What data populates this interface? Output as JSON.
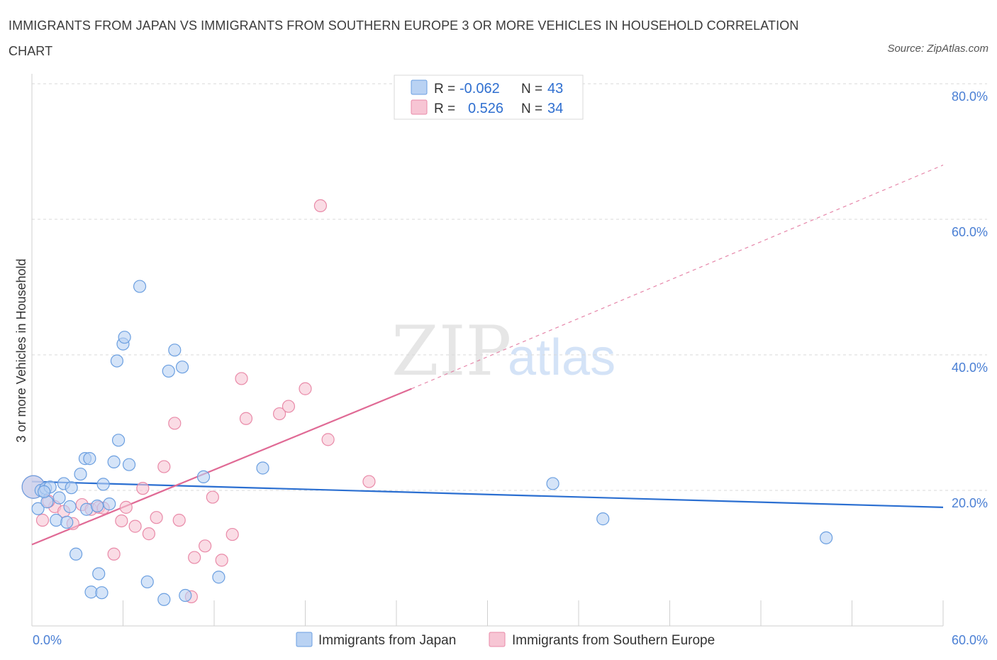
{
  "title": "IMMIGRANTS FROM JAPAN VS IMMIGRANTS FROM SOUTHERN EUROPE 3 OR MORE VEHICLES IN HOUSEHOLD CORRELATION CHART",
  "source": "Source: ZipAtlas.com",
  "watermark": {
    "zip": "ZIP",
    "atlas": "atlas"
  },
  "colors": {
    "japan_fill": "#b9d2f3",
    "japan_stroke": "#6b9fe0",
    "japan_line": "#2b6fd1",
    "seu_fill": "#f7c5d4",
    "seu_stroke": "#e98aa8",
    "seu_line": "#e06a95",
    "grid": "#d9d9d9",
    "tick_text": "#4a7fd4"
  },
  "stats_legend": {
    "r_label": "R =",
    "n_label": "N =",
    "rows": [
      {
        "series": "japan",
        "r": "-0.062",
        "n": "43"
      },
      {
        "series": "seu",
        "r": "0.526",
        "n": "34"
      }
    ]
  },
  "chart_data": {
    "type": "scatter",
    "title": "IMMIGRANTS FROM JAPAN VS IMMIGRANTS FROM SOUTHERN EUROPE 3 OR MORE VEHICLES IN HOUSEHOLD CORRELATION CHART",
    "xlabel": "",
    "ylabel": "3 or more Vehicles in Household",
    "xlim": [
      0,
      60
    ],
    "ylim": [
      0,
      80
    ],
    "x_tick_labels": [
      {
        "value": 0,
        "label": "0.0%"
      },
      {
        "value": 60,
        "label": "60.0%"
      }
    ],
    "y_tick_labels": [
      {
        "value": 20,
        "label": "20.0%"
      },
      {
        "value": 40,
        "label": "40.0%"
      },
      {
        "value": 60,
        "label": "60.0%"
      },
      {
        "value": 80,
        "label": "80.0%"
      }
    ],
    "series": [
      {
        "name": "Immigrants from Japan",
        "key": "japan",
        "points": [
          {
            "x": 0.1,
            "y": 20.5,
            "size": "large"
          },
          {
            "x": 0.4,
            "y": 17.3
          },
          {
            "x": 0.6,
            "y": 20.0
          },
          {
            "x": 0.9,
            "y": 20.3
          },
          {
            "x": 1.0,
            "y": 18.3
          },
          {
            "x": 1.2,
            "y": 20.5
          },
          {
            "x": 1.6,
            "y": 15.6
          },
          {
            "x": 1.8,
            "y": 18.9
          },
          {
            "x": 2.1,
            "y": 21.0
          },
          {
            "x": 2.3,
            "y": 15.3
          },
          {
            "x": 2.6,
            "y": 20.4
          },
          {
            "x": 2.5,
            "y": 17.6
          },
          {
            "x": 2.9,
            "y": 10.6
          },
          {
            "x": 3.2,
            "y": 22.4
          },
          {
            "x": 3.5,
            "y": 24.7
          },
          {
            "x": 3.8,
            "y": 24.7
          },
          {
            "x": 3.6,
            "y": 17.2
          },
          {
            "x": 3.9,
            "y": 5.0
          },
          {
            "x": 4.4,
            "y": 7.7
          },
          {
            "x": 4.7,
            "y": 20.9
          },
          {
            "x": 4.6,
            "y": 4.9
          },
          {
            "x": 5.1,
            "y": 18.0
          },
          {
            "x": 5.4,
            "y": 24.2
          },
          {
            "x": 5.6,
            "y": 39.1
          },
          {
            "x": 5.7,
            "y": 27.4
          },
          {
            "x": 6.0,
            "y": 41.6
          },
          {
            "x": 6.1,
            "y": 42.6
          },
          {
            "x": 6.4,
            "y": 23.8
          },
          {
            "x": 7.1,
            "y": 50.1
          },
          {
            "x": 7.6,
            "y": 6.5
          },
          {
            "x": 8.7,
            "y": 3.9
          },
          {
            "x": 9.0,
            "y": 37.6
          },
          {
            "x": 9.4,
            "y": 40.7
          },
          {
            "x": 9.9,
            "y": 38.2
          },
          {
            "x": 10.1,
            "y": 4.5
          },
          {
            "x": 11.3,
            "y": 22.0
          },
          {
            "x": 12.3,
            "y": 7.2
          },
          {
            "x": 15.2,
            "y": 23.3
          },
          {
            "x": 34.3,
            "y": 21.0
          },
          {
            "x": 37.6,
            "y": 15.8
          },
          {
            "x": 52.3,
            "y": 13.0
          },
          {
            "x": 4.3,
            "y": 17.7
          },
          {
            "x": 0.8,
            "y": 19.8
          }
        ],
        "trend": {
          "x0": 0,
          "y0": 21.3,
          "x1": 60,
          "y1": 17.5
        }
      },
      {
        "name": "Immigrants from Southern Europe",
        "key": "seu",
        "points": [
          {
            "x": 0.1,
            "y": 20.5,
            "size": "large"
          },
          {
            "x": 0.7,
            "y": 15.6
          },
          {
            "x": 1.5,
            "y": 17.6
          },
          {
            "x": 2.1,
            "y": 16.9
          },
          {
            "x": 2.7,
            "y": 15.1
          },
          {
            "x": 3.3,
            "y": 17.9
          },
          {
            "x": 3.9,
            "y": 17.2
          },
          {
            "x": 4.4,
            "y": 17.5
          },
          {
            "x": 5.4,
            "y": 10.6
          },
          {
            "x": 5.9,
            "y": 15.5
          },
          {
            "x": 6.2,
            "y": 17.5
          },
          {
            "x": 6.8,
            "y": 14.7
          },
          {
            "x": 7.3,
            "y": 20.3
          },
          {
            "x": 7.7,
            "y": 13.6
          },
          {
            "x": 8.2,
            "y": 16.0
          },
          {
            "x": 8.7,
            "y": 23.5
          },
          {
            "x": 9.4,
            "y": 29.9
          },
          {
            "x": 9.7,
            "y": 15.6
          },
          {
            "x": 10.5,
            "y": 4.3
          },
          {
            "x": 10.7,
            "y": 10.1
          },
          {
            "x": 11.4,
            "y": 11.8
          },
          {
            "x": 11.9,
            "y": 19.0
          },
          {
            "x": 12.5,
            "y": 9.7
          },
          {
            "x": 13.2,
            "y": 13.5
          },
          {
            "x": 13.8,
            "y": 36.5
          },
          {
            "x": 14.1,
            "y": 30.6
          },
          {
            "x": 16.3,
            "y": 31.3
          },
          {
            "x": 16.9,
            "y": 32.4
          },
          {
            "x": 18.0,
            "y": 35.0
          },
          {
            "x": 19.0,
            "y": 62.0
          },
          {
            "x": 19.5,
            "y": 27.5
          },
          {
            "x": 22.2,
            "y": 21.3
          },
          {
            "x": 4.7,
            "y": 17.4
          },
          {
            "x": 1.1,
            "y": 18.4
          }
        ],
        "trend": {
          "x0": 0,
          "y0": 12.0,
          "x1": 25,
          "y1": 35.0
        },
        "trend_extension": {
          "x0": 25,
          "y0": 35.0,
          "x1": 60,
          "y1": 68.0
        }
      }
    ]
  }
}
